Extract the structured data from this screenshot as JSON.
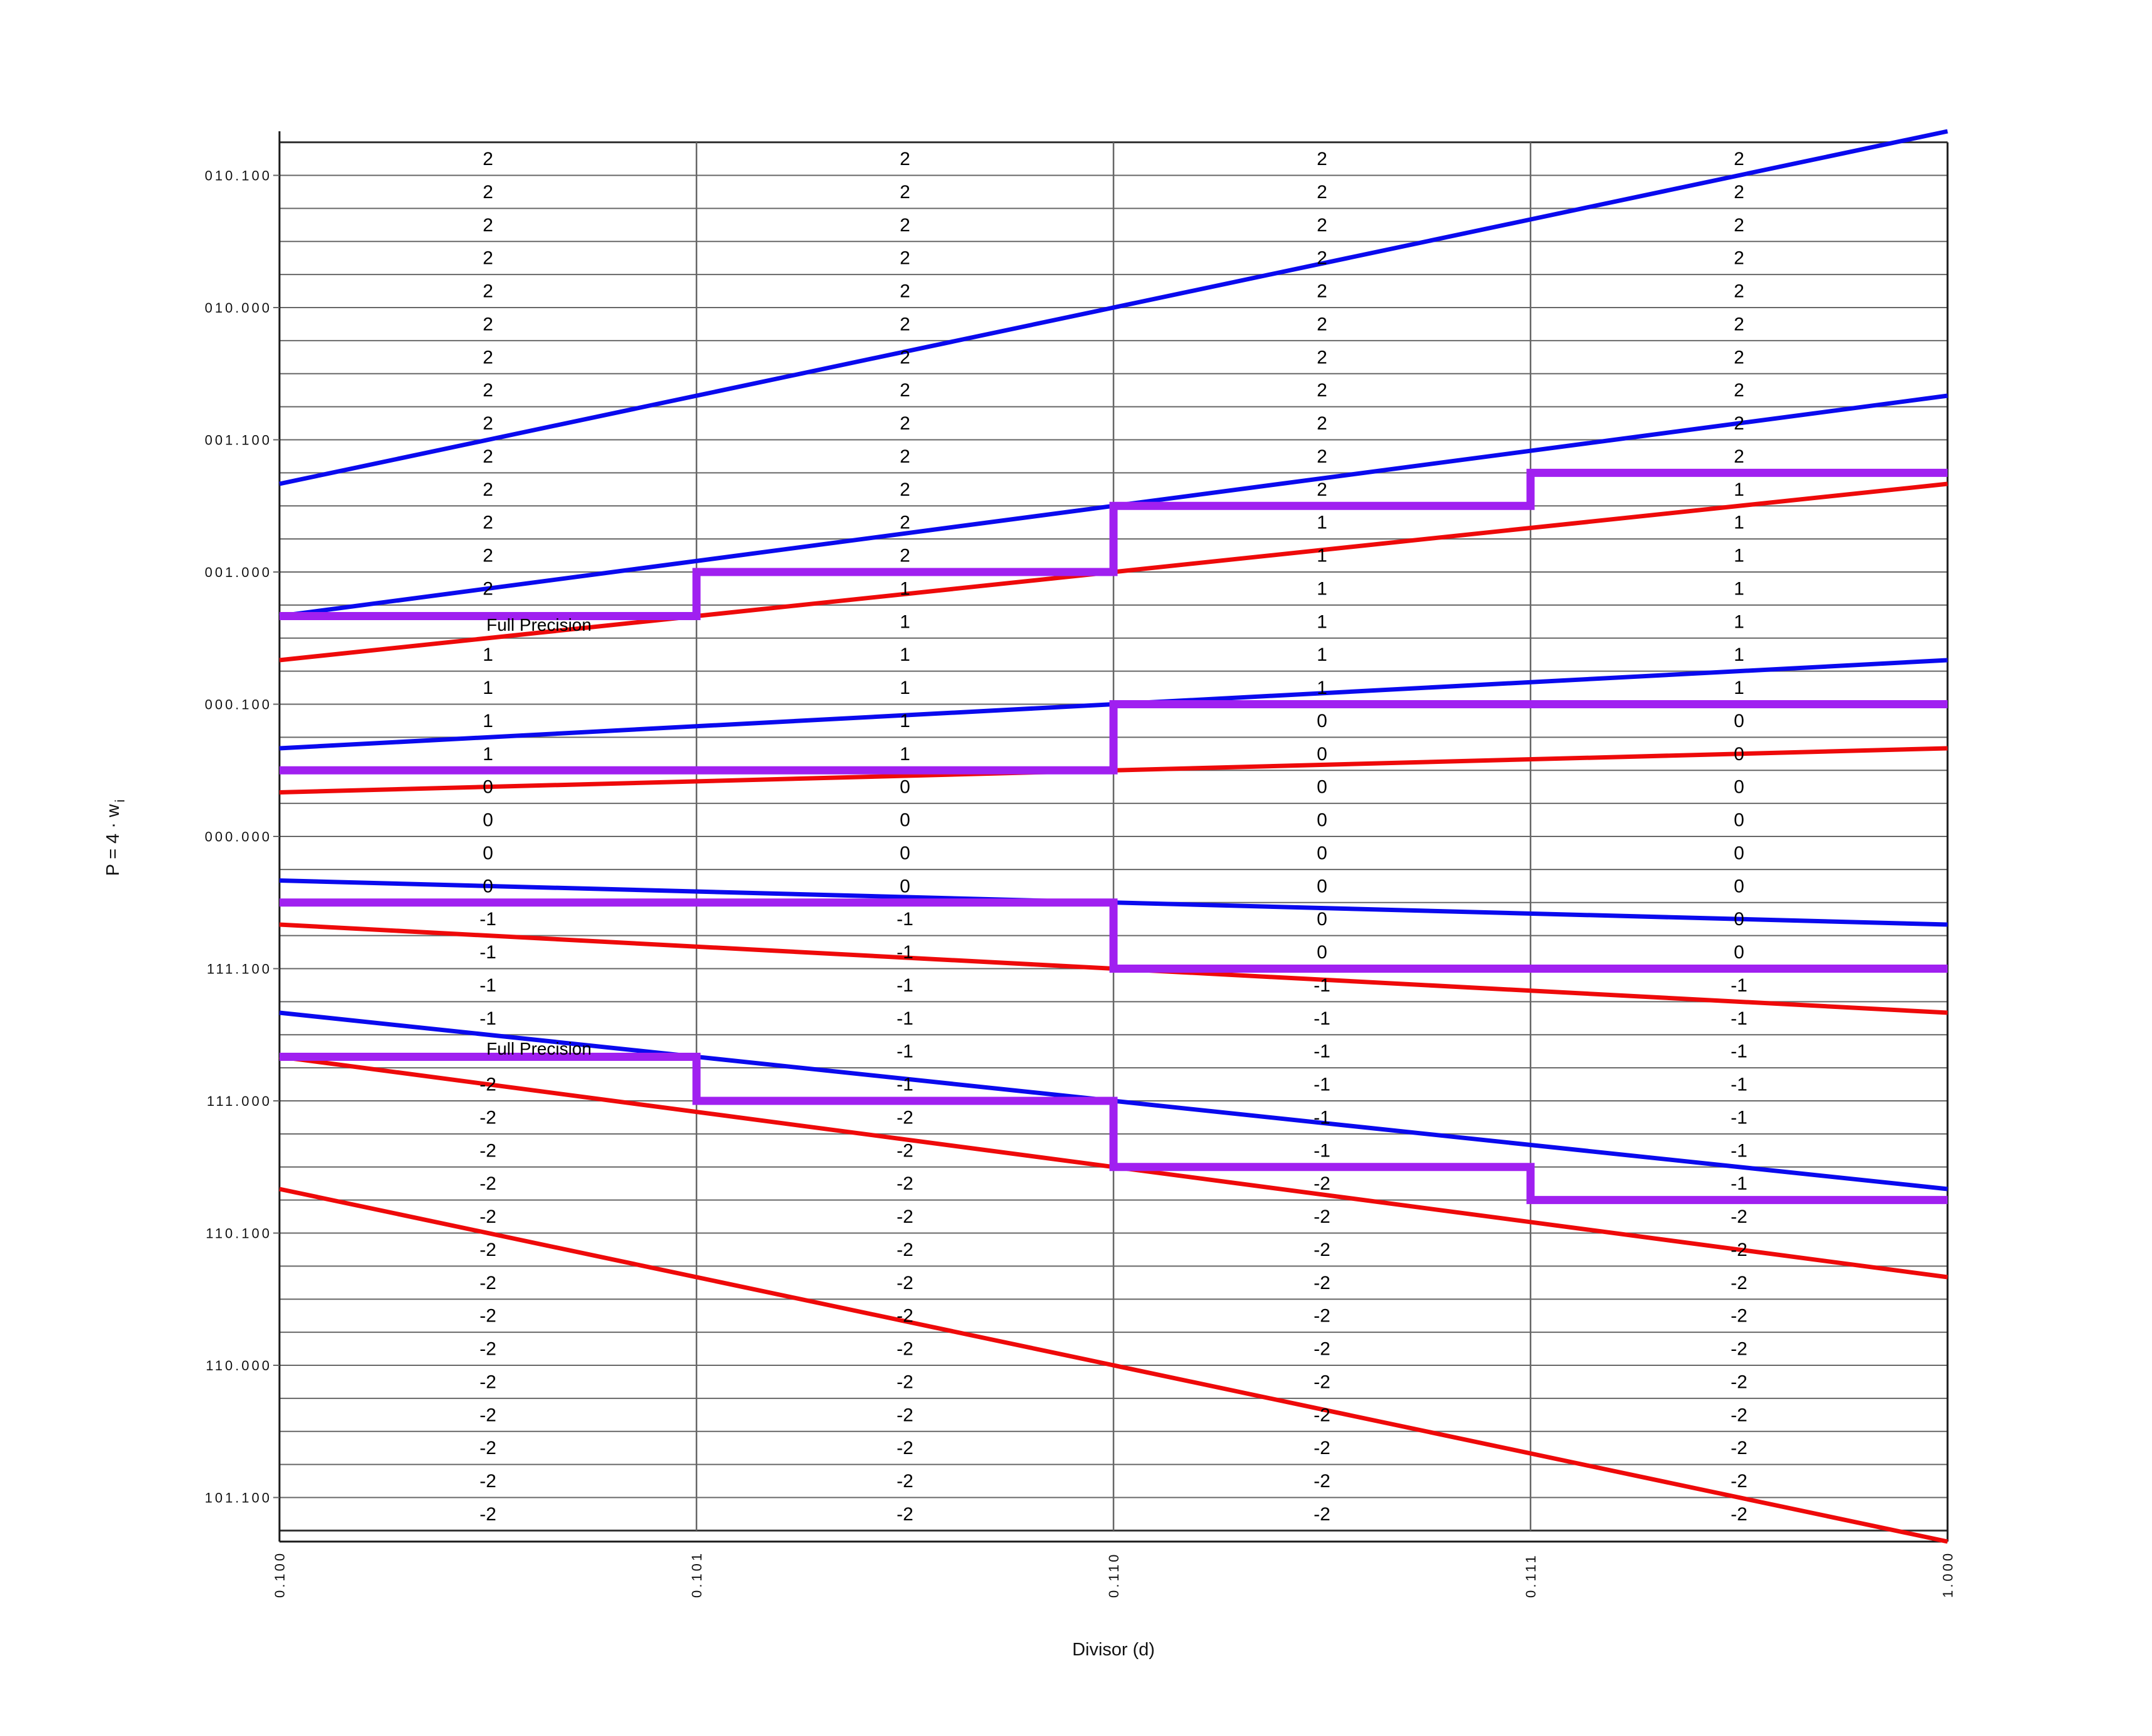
{
  "labels": {
    "full_precision": "Full Precision"
  },
  "chart_data": {
    "type": "line",
    "title": "",
    "xlabel": "Divisor (d)",
    "ylabel_base": "P = 4 · w",
    "ylabel_sub": "i",
    "xlim": [
      0.5,
      1.0
    ],
    "ylim": [
      -2.6667,
      2.6667
    ],
    "grid": {
      "on": true,
      "p_min": -2.625,
      "p_max": 2.625,
      "p_step": 0.125,
      "d_gridlines": [
        0.5,
        0.625,
        0.75,
        0.875,
        1.0
      ]
    },
    "x_ticks": [
      {
        "d": 0.5,
        "label": "0.100"
      },
      {
        "d": 0.625,
        "label": "0.101"
      },
      {
        "d": 0.75,
        "label": "0.110"
      },
      {
        "d": 0.875,
        "label": "0.111"
      },
      {
        "d": 1.0,
        "label": "1.000"
      }
    ],
    "y_ticks": [
      {
        "p": 2.5,
        "label": "010.100"
      },
      {
        "p": 2.0,
        "label": "010.000"
      },
      {
        "p": 1.5,
        "label": "001.100"
      },
      {
        "p": 1.0,
        "label": "001.000"
      },
      {
        "p": 0.5,
        "label": "000.100"
      },
      {
        "p": 0.0,
        "label": "000.000"
      },
      {
        "p": -0.5,
        "label": "111.100"
      },
      {
        "p": -1.0,
        "label": "111.000"
      },
      {
        "p": -1.5,
        "label": "110.100"
      },
      {
        "p": -2.0,
        "label": "110.000"
      },
      {
        "p": -2.5,
        "label": "101.100"
      }
    ],
    "selection_lines": {
      "upper_bounds": {
        "color_key": "blue",
        "formula": "U_k = (k + 2/3) * d",
        "series": [
          {
            "k": 2,
            "slope": 2.66667
          },
          {
            "k": 1,
            "slope": 1.66667
          },
          {
            "k": 0,
            "slope": 0.66667
          },
          {
            "k": -1,
            "slope": -0.33333
          },
          {
            "k": -2,
            "slope": -1.33333
          }
        ]
      },
      "lower_bounds": {
        "color_key": "red",
        "formula": "L_k = (k - 2/3) * d",
        "series": [
          {
            "k": 2,
            "slope": 1.33333
          },
          {
            "k": 1,
            "slope": 0.33333
          },
          {
            "k": 0,
            "slope": -0.66667
          },
          {
            "k": -1,
            "slope": -1.66667
          },
          {
            "k": -2,
            "slope": -2.66667
          }
        ]
      }
    },
    "divisor_columns": [
      {
        "d_from": 0.5,
        "d_to": 0.625
      },
      {
        "d_from": 0.625,
        "d_to": 0.75
      },
      {
        "d_from": 0.75,
        "d_to": 0.875
      },
      {
        "d_from": 0.875,
        "d_to": 1.0
      }
    ],
    "staircases": [
      {
        "boundary": "q2|q1",
        "levels_per_column": [
          0.83333,
          1.0,
          1.25,
          1.375
        ],
        "label": "Full Precision",
        "label_side": "below"
      },
      {
        "boundary": "q1|q0",
        "levels_per_column": [
          0.25,
          0.25,
          0.5,
          0.5
        ],
        "label": null
      },
      {
        "boundary": "q0|q-1",
        "levels_per_column": [
          -0.25,
          -0.25,
          -0.5,
          -0.5
        ],
        "label": null
      },
      {
        "boundary": "q-1|q-2",
        "levels_per_column": [
          -0.83333,
          -1.0,
          -1.25,
          -1.375
        ],
        "label": "Full Precision",
        "label_side": "above"
      }
    ],
    "cell_digits_note": "rows are 1/8-high bands; row centers run 2.5625 down to -2.5625; runs give digit printed in each band per divisor column",
    "cell_digits": [
      {
        "column": 1,
        "runs": [
          {
            "digit": "2",
            "p_top": 2.5625,
            "p_bottom": 0.9375
          },
          {
            "digit": "1",
            "p_top": 0.6875,
            "p_bottom": 0.3125
          },
          {
            "digit": "0",
            "p_top": 0.1875,
            "p_bottom": -0.1875
          },
          {
            "digit": "-1",
            "p_top": -0.3125,
            "p_bottom": -0.6875
          },
          {
            "digit": "-2",
            "p_top": -0.9375,
            "p_bottom": -2.5625
          }
        ],
        "rows_without_digit": [
          0.8125,
          -0.8125
        ]
      },
      {
        "column": 2,
        "runs": [
          {
            "digit": "2",
            "p_top": 2.5625,
            "p_bottom": 1.0625
          },
          {
            "digit": "1",
            "p_top": 0.9375,
            "p_bottom": 0.3125
          },
          {
            "digit": "0",
            "p_top": 0.1875,
            "p_bottom": -0.1875
          },
          {
            "digit": "-1",
            "p_top": -0.3125,
            "p_bottom": -0.9375
          },
          {
            "digit": "-2",
            "p_top": -1.0625,
            "p_bottom": -2.5625
          }
        ],
        "rows_without_digit": []
      },
      {
        "column": 3,
        "runs": [
          {
            "digit": "2",
            "p_top": 2.5625,
            "p_bottom": 1.3125
          },
          {
            "digit": "1",
            "p_top": 1.1875,
            "p_bottom": 0.5625
          },
          {
            "digit": "0",
            "p_top": 0.4375,
            "p_bottom": -0.4375
          },
          {
            "digit": "-1",
            "p_top": -0.5625,
            "p_bottom": -1.1875
          },
          {
            "digit": "-2",
            "p_top": -1.3125,
            "p_bottom": -2.5625
          }
        ],
        "rows_without_digit": []
      },
      {
        "column": 4,
        "runs": [
          {
            "digit": "2",
            "p_top": 2.5625,
            "p_bottom": 1.4375
          },
          {
            "digit": "1",
            "p_top": 1.3125,
            "p_bottom": 0.5625
          },
          {
            "digit": "0",
            "p_top": 0.4375,
            "p_bottom": -0.4375
          },
          {
            "digit": "-1",
            "p_top": -0.5625,
            "p_bottom": -1.3125
          },
          {
            "digit": "-2",
            "p_top": -1.4375,
            "p_bottom": -2.5625
          }
        ],
        "rows_without_digit": []
      }
    ],
    "colors": {
      "blue": "#0a0aee",
      "red": "#ee0a0a",
      "purple": "#a020f0",
      "grid": "#666666",
      "grid_edge": "#333333",
      "spine": "#1a1a1a",
      "text": "#000000"
    },
    "legend_position": "none"
  }
}
